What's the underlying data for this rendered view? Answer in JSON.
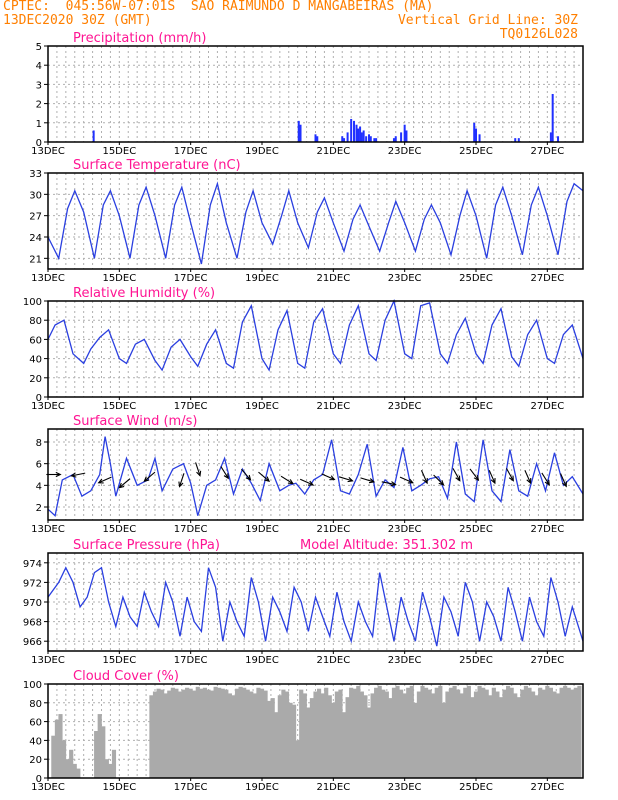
{
  "header": {
    "line1_left": "CPTEC:  045:56W-07:01S  SAO RAIMUNDO D MANGABEIRAS (MA)",
    "line2_left": "13DEC2020 30Z (GMT)",
    "line2_right": "Vertical Grid Line: 30Z",
    "line3_right": "TQ0126L028"
  },
  "colors": {
    "header": "#ff7f00",
    "title": "#ff1493",
    "series": "#2a3fe0",
    "precip": "#2030ff",
    "cloud": "#aaaaaa"
  },
  "x_tick_labels": [
    "13DEC",
    "15DEC",
    "17DEC",
    "19DEC",
    "21DEC",
    "23DEC",
    "25DEC",
    "27DEC"
  ],
  "chart_data": [
    {
      "type": "bar",
      "title": "Precipitation (mm/h)",
      "x_unit": "days since 13DEC 00Z",
      "ylim": [
        0,
        5
      ],
      "yticks": [
        0,
        1,
        2,
        3,
        4,
        5
      ],
      "x": [
        1.28,
        7.03,
        7.08,
        7.5,
        7.55,
        8.25,
        8.3,
        8.4,
        8.5,
        8.58,
        8.65,
        8.7,
        8.75,
        8.8,
        8.85,
        8.92,
        9.0,
        9.05,
        9.15,
        9.2,
        9.7,
        9.75,
        9.9,
        10.0,
        10.05,
        11.95,
        12.0,
        12.1,
        13.1,
        13.2,
        14.1,
        14.15,
        14.3
      ],
      "values": [
        0.6,
        1.1,
        0.9,
        0.4,
        0.3,
        0.3,
        0.2,
        0.5,
        1.2,
        1.1,
        0.9,
        0.7,
        0.8,
        0.5,
        0.6,
        0.3,
        0.4,
        0.3,
        0.2,
        0.2,
        0.2,
        0.3,
        0.5,
        0.9,
        0.6,
        1.0,
        0.7,
        0.4,
        0.2,
        0.2,
        0.5,
        2.5,
        0.3
      ]
    },
    {
      "type": "line",
      "title": "Surface Temperature (nC)",
      "ylim": [
        19.5,
        33
      ],
      "yticks": [
        21,
        24,
        27,
        30,
        33
      ],
      "x": [
        0,
        0.3,
        0.55,
        0.75,
        1.0,
        1.3,
        1.55,
        1.75,
        2.0,
        2.3,
        2.55,
        2.75,
        3.0,
        3.3,
        3.55,
        3.75,
        4.0,
        4.3,
        4.55,
        4.75,
        5.0,
        5.3,
        5.55,
        5.75,
        6.0,
        6.3,
        6.55,
        6.75,
        7.0,
        7.3,
        7.55,
        7.75,
        8.0,
        8.3,
        8.55,
        8.75,
        9.0,
        9.3,
        9.55,
        9.75,
        10.0,
        10.3,
        10.55,
        10.75,
        11.0,
        11.3,
        11.55,
        11.75,
        12.0,
        12.3,
        12.55,
        12.75,
        13.0,
        13.3,
        13.55,
        13.75,
        14.0,
        14.3,
        14.55,
        14.75,
        15.0
      ],
      "values": [
        24.0,
        21.0,
        28.0,
        30.5,
        27.5,
        21.0,
        28.5,
        30.5,
        27.0,
        21.0,
        28.5,
        31.0,
        27.0,
        21.0,
        28.5,
        31.0,
        26.0,
        20.2,
        28.5,
        31.5,
        26.0,
        21.0,
        27.5,
        30.5,
        26.0,
        23.0,
        27.0,
        30.5,
        26.0,
        22.5,
        27.5,
        29.5,
        26.0,
        22.0,
        26.5,
        28.5,
        25.5,
        22.0,
        26.0,
        29.0,
        26.0,
        22.0,
        26.5,
        28.5,
        26.0,
        21.5,
        27.0,
        30.5,
        27.0,
        21.0,
        28.5,
        31.0,
        27.0,
        21.5,
        28.5,
        31.0,
        27.0,
        21.5,
        29.0,
        31.5,
        30.5
      ]
    },
    {
      "type": "line",
      "title": "Relative Humidity (%)",
      "ylim": [
        0,
        100
      ],
      "yticks": [
        0,
        20,
        40,
        60,
        80,
        100
      ],
      "x": [
        0,
        0.2,
        0.45,
        0.7,
        1.0,
        1.2,
        1.45,
        1.7,
        2.0,
        2.2,
        2.45,
        2.7,
        3.0,
        3.2,
        3.45,
        3.7,
        4.0,
        4.2,
        4.45,
        4.7,
        5.0,
        5.2,
        5.45,
        5.7,
        6.0,
        6.2,
        6.45,
        6.7,
        7.0,
        7.2,
        7.45,
        7.7,
        8.0,
        8.2,
        8.45,
        8.7,
        9.0,
        9.2,
        9.45,
        9.7,
        10.0,
        10.2,
        10.45,
        10.7,
        11.0,
        11.2,
        11.45,
        11.7,
        12.0,
        12.2,
        12.45,
        12.7,
        13.0,
        13.2,
        13.45,
        13.7,
        14.0,
        14.2,
        14.45,
        14.7,
        15.0
      ],
      "values": [
        60,
        75,
        80,
        45,
        35,
        50,
        62,
        70,
        40,
        35,
        55,
        60,
        38,
        28,
        52,
        60,
        42,
        32,
        55,
        70,
        35,
        30,
        78,
        95,
        40,
        28,
        70,
        90,
        35,
        30,
        78,
        92,
        45,
        35,
        75,
        95,
        45,
        38,
        80,
        100,
        45,
        40,
        95,
        98,
        45,
        35,
        65,
        82,
        45,
        35,
        75,
        92,
        42,
        32,
        65,
        80,
        40,
        35,
        65,
        75,
        40
      ]
    },
    {
      "type": "line",
      "title": "Surface Wind (m/s)",
      "ylim": [
        0.8,
        9.2
      ],
      "yticks": [
        2,
        4,
        6,
        8
      ],
      "x": [
        0,
        0.2,
        0.4,
        0.7,
        0.95,
        1.2,
        1.45,
        1.6,
        1.75,
        1.9,
        2.2,
        2.5,
        2.8,
        3.0,
        3.2,
        3.5,
        3.8,
        4.0,
        4.2,
        4.45,
        4.7,
        4.95,
        5.2,
        5.45,
        5.7,
        5.95,
        6.2,
        6.5,
        6.75,
        6.95,
        7.2,
        7.45,
        7.7,
        7.95,
        8.2,
        8.45,
        8.7,
        8.95,
        9.2,
        9.45,
        9.7,
        9.95,
        10.2,
        10.45,
        10.7,
        10.95,
        11.2,
        11.45,
        11.7,
        11.95,
        12.2,
        12.45,
        12.7,
        12.95,
        13.2,
        13.45,
        13.7,
        13.95,
        14.2,
        14.45,
        14.7,
        15.0
      ],
      "values": [
        1.8,
        1.2,
        4.5,
        5.0,
        3.0,
        3.5,
        5.0,
        8.5,
        6.0,
        3.0,
        6.5,
        4.0,
        4.5,
        6.5,
        3.5,
        5.5,
        6.0,
        4.2,
        1.2,
        4.0,
        4.5,
        6.5,
        3.2,
        5.5,
        4.2,
        2.6,
        6.0,
        3.5,
        4.0,
        4.2,
        3.2,
        4.5,
        5.0,
        8.2,
        3.5,
        3.2,
        5.0,
        7.8,
        3.0,
        4.5,
        3.8,
        7.5,
        3.5,
        4.0,
        4.6,
        4.8,
        2.8,
        8.0,
        3.2,
        2.5,
        8.2,
        3.5,
        2.5,
        7.3,
        3.5,
        3.0,
        6.0,
        3.5,
        7.0,
        4.0,
        4.8,
        3.2
      ],
      "arrows": {
        "x": [
          0.15,
          0.85,
          1.6,
          2.15,
          2.85,
          3.75,
          4.2,
          4.95,
          5.55,
          6.05,
          6.7,
          7.25,
          7.85,
          8.35,
          8.95,
          9.55,
          10.05,
          10.55,
          10.95,
          11.45,
          11.95,
          12.45,
          12.95,
          13.45,
          13.95,
          14.45
        ],
        "u": [
          1.0,
          -1.0,
          -0.9,
          -0.6,
          -0.7,
          -0.3,
          0.3,
          0.5,
          0.6,
          0.7,
          0.8,
          0.9,
          0.9,
          1.0,
          1.0,
          1.0,
          0.9,
          0.4,
          0.7,
          0.5,
          0.6,
          0.4,
          0.5,
          0.4,
          0.5,
          0.4
        ],
        "v": [
          0.0,
          0.2,
          0.4,
          0.5,
          0.6,
          0.9,
          0.9,
          0.8,
          0.7,
          0.6,
          0.5,
          0.4,
          0.4,
          0.3,
          0.3,
          0.2,
          0.4,
          0.9,
          0.7,
          0.9,
          0.8,
          0.9,
          0.9,
          0.9,
          0.8,
          0.9
        ],
        "speed": [
          5,
          5,
          4.5,
          4.2,
          4.8,
          4.5,
          5.5,
          5.2,
          5.0,
          4.8,
          4.5,
          4.3,
          4.8,
          4.6,
          4.5,
          4.2,
          4.5,
          4.8,
          4.5,
          5.0,
          5.0,
          4.8,
          5.0,
          4.8,
          4.6,
          4.5
        ]
      }
    },
    {
      "type": "line",
      "title": "Surface Pressure (hPa)",
      "annotation": "Model Altitude: 351.302 m",
      "ylim": [
        965,
        975
      ],
      "yticks": [
        966,
        968,
        970,
        972,
        974
      ],
      "x": [
        0,
        0.3,
        0.5,
        0.7,
        0.9,
        1.1,
        1.3,
        1.5,
        1.7,
        1.9,
        2.1,
        2.3,
        2.5,
        2.7,
        2.9,
        3.1,
        3.3,
        3.5,
        3.7,
        3.9,
        4.1,
        4.3,
        4.5,
        4.7,
        4.9,
        5.1,
        5.3,
        5.5,
        5.7,
        5.9,
        6.1,
        6.3,
        6.5,
        6.7,
        6.9,
        7.1,
        7.3,
        7.5,
        7.7,
        7.9,
        8.1,
        8.3,
        8.5,
        8.7,
        8.9,
        9.1,
        9.3,
        9.5,
        9.7,
        9.9,
        10.1,
        10.3,
        10.5,
        10.7,
        10.9,
        11.1,
        11.3,
        11.5,
        11.7,
        11.9,
        12.1,
        12.3,
        12.5,
        12.7,
        12.9,
        13.1,
        13.3,
        13.5,
        13.7,
        13.9,
        14.1,
        14.3,
        14.5,
        14.7,
        15.0
      ],
      "values": [
        970.5,
        972.0,
        973.5,
        972.0,
        969.5,
        970.5,
        973.0,
        973.5,
        970.0,
        967.5,
        970.5,
        968.5,
        967.5,
        971.0,
        969.0,
        967.5,
        972.0,
        970.0,
        966.5,
        970.5,
        968.0,
        967.0,
        973.5,
        971.5,
        966.0,
        970.0,
        968.0,
        966.5,
        972.5,
        970.0,
        966.0,
        970.5,
        969.0,
        967.0,
        971.5,
        970.0,
        967.0,
        970.5,
        968.5,
        966.5,
        971.0,
        968.0,
        966.0,
        970.0,
        968.0,
        966.5,
        973.0,
        969.5,
        966.0,
        970.5,
        968.0,
        966.0,
        971.0,
        968.5,
        965.5,
        970.5,
        969.0,
        966.5,
        972.0,
        970.0,
        966.0,
        970.0,
        968.5,
        966.0,
        971.5,
        969.0,
        966.0,
        970.5,
        968.0,
        966.5,
        972.5,
        970.0,
        966.5,
        969.5,
        966.0
      ]
    },
    {
      "type": "bar",
      "title": "Cloud Cover (%)",
      "ylim": [
        0,
        100
      ],
      "yticks": [
        0,
        20,
        40,
        60,
        80,
        100
      ],
      "x": [
        0.15,
        0.25,
        0.35,
        0.45,
        0.55,
        0.65,
        0.75,
        0.85,
        1.35,
        1.45,
        1.55,
        1.65,
        1.75,
        1.85,
        2.9,
        3.0,
        3.1,
        3.2,
        3.3,
        3.4,
        3.5,
        3.6,
        3.7,
        3.8,
        3.9,
        4.0,
        4.1,
        4.2,
        4.3,
        4.4,
        4.5,
        4.6,
        4.7,
        4.8,
        4.9,
        5.0,
        5.1,
        5.2,
        5.3,
        5.4,
        5.5,
        5.6,
        5.7,
        5.8,
        5.9,
        6.0,
        6.1,
        6.2,
        6.3,
        6.4,
        6.5,
        6.6,
        6.7,
        6.8,
        6.9,
        7.0,
        7.1,
        7.2,
        7.3,
        7.4,
        7.5,
        7.6,
        7.7,
        7.8,
        7.9,
        8.0,
        8.1,
        8.2,
        8.3,
        8.4,
        8.5,
        8.6,
        8.7,
        8.8,
        8.9,
        9.0,
        9.1,
        9.2,
        9.3,
        9.4,
        9.5,
        9.6,
        9.7,
        9.8,
        9.9,
        10.0,
        10.1,
        10.2,
        10.3,
        10.4,
        10.5,
        10.6,
        10.7,
        10.8,
        10.9,
        11.0,
        11.1,
        11.2,
        11.3,
        11.4,
        11.5,
        11.6,
        11.7,
        11.8,
        11.9,
        12.0,
        12.1,
        12.2,
        12.3,
        12.4,
        12.5,
        12.6,
        12.7,
        12.8,
        12.9,
        13.0,
        13.1,
        13.2,
        13.3,
        13.4,
        13.5,
        13.6,
        13.7,
        13.8,
        13.9,
        14.0,
        14.1,
        14.2,
        14.3,
        14.4,
        14.5,
        14.6,
        14.7,
        14.8,
        14.9
      ],
      "values": [
        45,
        62,
        68,
        40,
        20,
        30,
        15,
        10,
        50,
        68,
        55,
        20,
        15,
        30,
        88,
        92,
        95,
        94,
        90,
        93,
        96,
        95,
        92,
        94,
        96,
        95,
        93,
        97,
        95,
        96,
        94,
        93,
        97,
        96,
        95,
        94,
        90,
        88,
        95,
        97,
        96,
        94,
        92,
        90,
        96,
        95,
        93,
        82,
        85,
        70,
        88,
        94,
        92,
        80,
        78,
        40,
        94,
        90,
        75,
        85,
        92,
        95,
        90,
        96,
        88,
        80,
        92,
        94,
        70,
        86,
        96,
        95,
        98,
        92,
        88,
        75,
        90,
        96,
        98,
        94,
        92,
        85,
        96,
        98,
        94,
        90,
        96,
        98,
        80,
        92,
        98,
        96,
        94,
        90,
        96,
        98,
        80,
        92,
        96,
        98,
        94,
        90,
        96,
        98,
        86,
        92,
        98,
        96,
        94,
        88,
        96,
        92,
        86,
        94,
        98,
        96,
        90,
        86,
        94,
        98,
        96,
        92,
        88,
        96,
        94,
        98,
        96,
        92,
        90,
        96,
        98,
        96,
        94,
        96,
        98
      ]
    }
  ]
}
